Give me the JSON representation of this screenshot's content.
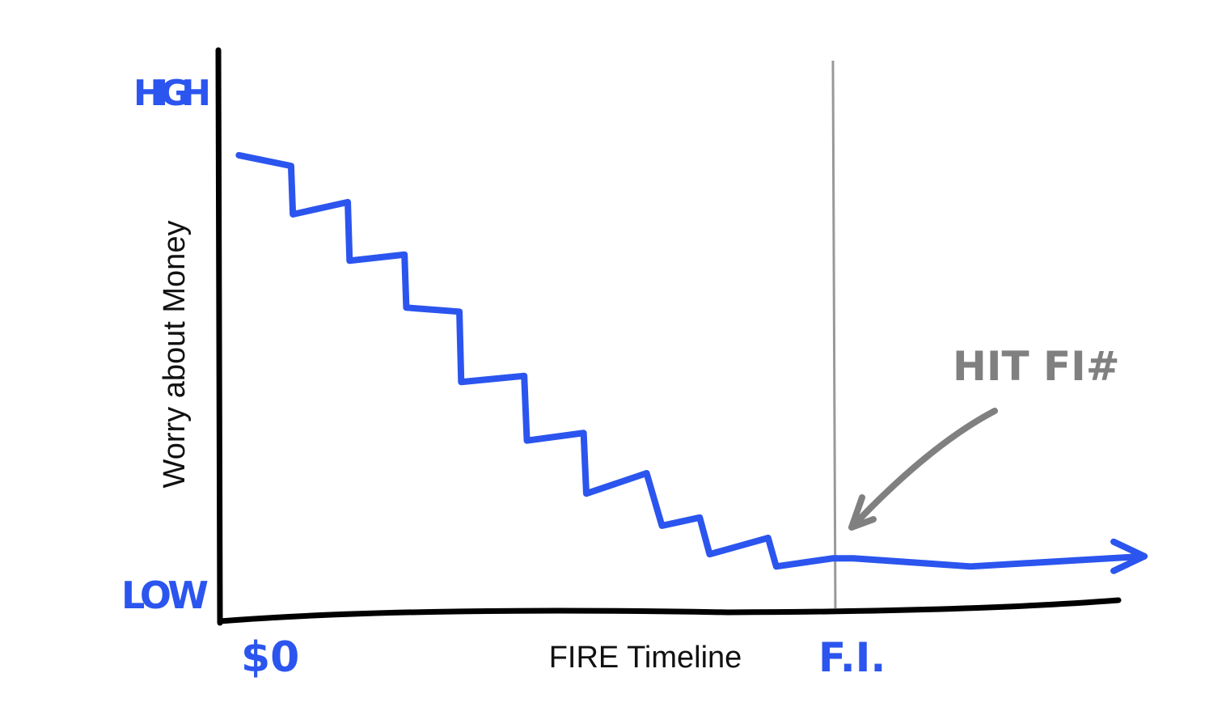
{
  "chart_data": {
    "type": "line",
    "title": "",
    "xlabel": "FIRE Timeline",
    "ylabel": "Worry about Money",
    "x_tick_labels": [
      {
        "label": "$0",
        "x": 0
      },
      {
        "label": "F.I.",
        "x": 68.1
      }
    ],
    "y_tick_labels": [
      {
        "label": "HIGH",
        "y": 100
      },
      {
        "label": "LOW",
        "y": 0
      }
    ],
    "xlim": [
      0,
      100
    ],
    "ylim": [
      0,
      100
    ],
    "grid": false,
    "series": [
      {
        "color": "#2b55ee",
        "points": [
          [
            2.1,
            87.0
          ],
          [
            7.9,
            84.9
          ],
          [
            8.1,
            75.4
          ],
          [
            14.2,
            77.8
          ],
          [
            14.4,
            66.3
          ],
          [
            20.5,
            67.5
          ],
          [
            20.7,
            57.1
          ],
          [
            26.6,
            56.3
          ],
          [
            26.8,
            42.5
          ],
          [
            33.8,
            43.7
          ],
          [
            34.1,
            31.0
          ],
          [
            40.4,
            32.5
          ],
          [
            40.7,
            20.6
          ],
          [
            47.4,
            24.6
          ],
          [
            49.1,
            14.3
          ],
          [
            53.3,
            15.9
          ],
          [
            54.4,
            8.7
          ],
          [
            60.9,
            11.9
          ],
          [
            61.8,
            6.3
          ],
          [
            68.1,
            7.9
          ],
          [
            70.4,
            7.9
          ],
          [
            83.4,
            6.3
          ],
          [
            102.7,
            8.3
          ]
        ]
      }
    ],
    "vertical_marker": {
      "x": 68.1,
      "color": "#999999"
    },
    "annotation": {
      "text": "HIT FI#",
      "color": "#808080"
    }
  }
}
